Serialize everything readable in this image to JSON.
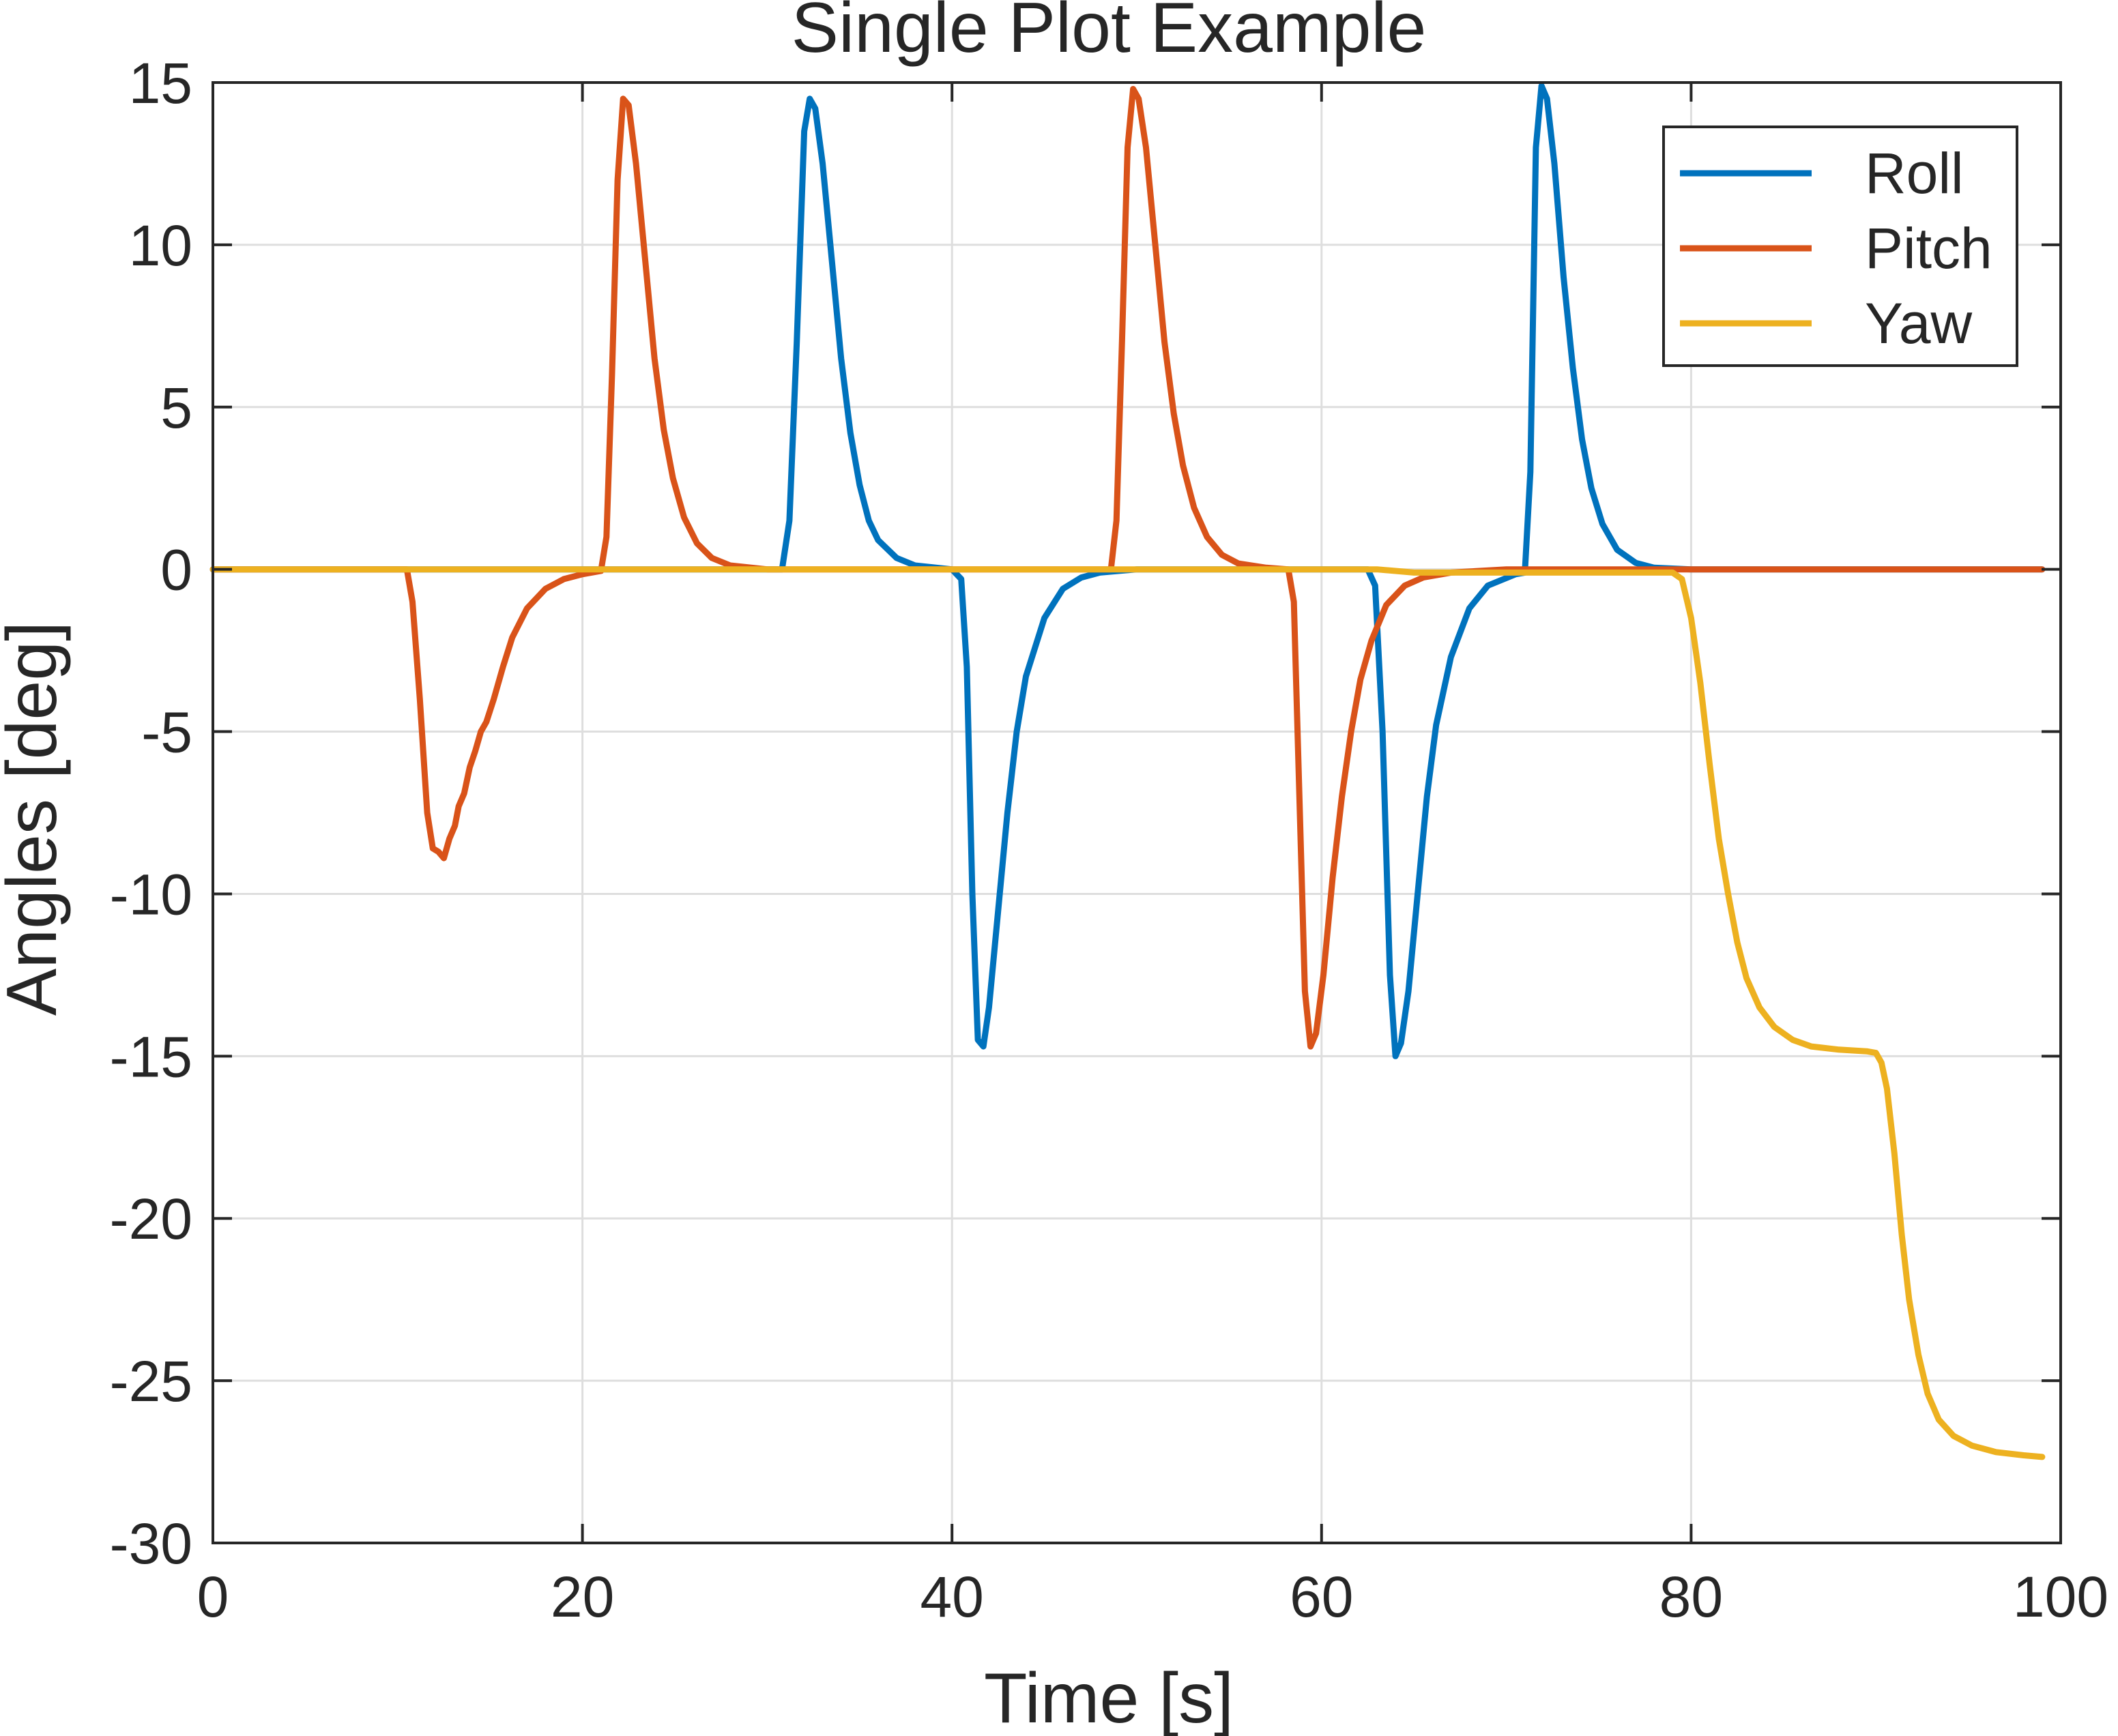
{
  "chart_data": {
    "type": "line",
    "title": "Single Plot Example",
    "xlabel": "Time [s]",
    "ylabel": "Angles [deg]",
    "xlim": [
      0,
      100
    ],
    "ylim": [
      -30,
      15
    ],
    "xticks": [
      0,
      20,
      40,
      60,
      80,
      100
    ],
    "yticks": [
      -30,
      -25,
      -20,
      -15,
      -10,
      -5,
      0,
      5,
      10,
      15
    ],
    "xtick_labels": [
      "0",
      "20",
      "40",
      "60",
      "80",
      "100"
    ],
    "ytick_labels": [
      "-30",
      "-25",
      "-20",
      "-15",
      "-10",
      "-5",
      "0",
      "5",
      "10",
      "15"
    ],
    "grid": true,
    "legend_position": "top-right",
    "series": [
      {
        "name": "Roll",
        "color": "#0072BD",
        "points": [
          [
            0,
            0
          ],
          [
            30.8,
            0
          ],
          [
            31.2,
            1.5
          ],
          [
            31.6,
            7
          ],
          [
            32.0,
            13.5
          ],
          [
            32.3,
            14.5
          ],
          [
            32.6,
            14.2
          ],
          [
            33.0,
            12.5
          ],
          [
            33.5,
            9.5
          ],
          [
            34.0,
            6.5
          ],
          [
            34.5,
            4.2
          ],
          [
            35.0,
            2.6
          ],
          [
            35.5,
            1.5
          ],
          [
            36.0,
            0.9
          ],
          [
            37.0,
            0.35
          ],
          [
            38.0,
            0.12
          ],
          [
            40.0,
            0
          ],
          [
            40.5,
            -0.3
          ],
          [
            40.8,
            -3
          ],
          [
            41.1,
            -10
          ],
          [
            41.4,
            -14.5
          ],
          [
            41.7,
            -14.7
          ],
          [
            42.0,
            -13.5
          ],
          [
            42.5,
            -10.5
          ],
          [
            43.0,
            -7.5
          ],
          [
            43.5,
            -5
          ],
          [
            44.0,
            -3.3
          ],
          [
            45.0,
            -1.5
          ],
          [
            46.0,
            -0.6
          ],
          [
            47.0,
            -0.25
          ],
          [
            48.0,
            -0.1
          ],
          [
            50.0,
            0
          ],
          [
            62.5,
            0
          ],
          [
            62.9,
            -0.5
          ],
          [
            63.3,
            -5
          ],
          [
            63.7,
            -12.5
          ],
          [
            64.0,
            -15
          ],
          [
            64.3,
            -14.6
          ],
          [
            64.7,
            -13
          ],
          [
            65.2,
            -10
          ],
          [
            65.7,
            -7
          ],
          [
            66.2,
            -4.8
          ],
          [
            67.0,
            -2.7
          ],
          [
            68.0,
            -1.2
          ],
          [
            69.0,
            -0.5
          ],
          [
            70.5,
            -0.15
          ],
          [
            71.0,
            -0.1
          ],
          [
            71.3,
            3
          ],
          [
            71.6,
            13
          ],
          [
            71.9,
            14.9
          ],
          [
            72.2,
            14.5
          ],
          [
            72.6,
            12.5
          ],
          [
            73.1,
            9
          ],
          [
            73.6,
            6.2
          ],
          [
            74.1,
            4
          ],
          [
            74.6,
            2.5
          ],
          [
            75.2,
            1.4
          ],
          [
            76.0,
            0.6
          ],
          [
            77.0,
            0.2
          ],
          [
            78.0,
            0.05
          ],
          [
            80.0,
            0
          ],
          [
            99,
            0
          ]
        ]
      },
      {
        "name": "Pitch",
        "color": "#D95319",
        "points": [
          [
            0,
            0
          ],
          [
            10.5,
            0
          ],
          [
            10.8,
            -1
          ],
          [
            11.2,
            -4
          ],
          [
            11.6,
            -7.5
          ],
          [
            11.9,
            -8.6
          ],
          [
            12.2,
            -8.7
          ],
          [
            12.5,
            -8.9
          ],
          [
            12.8,
            -8.3
          ],
          [
            13.1,
            -7.9
          ],
          [
            13.3,
            -7.3
          ],
          [
            13.6,
            -6.9
          ],
          [
            13.9,
            -6.1
          ],
          [
            14.2,
            -5.6
          ],
          [
            14.5,
            -5.0
          ],
          [
            14.8,
            -4.7
          ],
          [
            15.2,
            -4.0
          ],
          [
            15.7,
            -3.0
          ],
          [
            16.2,
            -2.1
          ],
          [
            17.0,
            -1.2
          ],
          [
            18.0,
            -0.6
          ],
          [
            19.0,
            -0.3
          ],
          [
            20.0,
            -0.15
          ],
          [
            21.0,
            -0.05
          ],
          [
            21.3,
            1
          ],
          [
            21.6,
            6
          ],
          [
            21.9,
            12
          ],
          [
            22.2,
            14.5
          ],
          [
            22.5,
            14.3
          ],
          [
            22.9,
            12.5
          ],
          [
            23.4,
            9.5
          ],
          [
            23.9,
            6.5
          ],
          [
            24.4,
            4.3
          ],
          [
            24.9,
            2.8
          ],
          [
            25.5,
            1.6
          ],
          [
            26.2,
            0.8
          ],
          [
            27.0,
            0.35
          ],
          [
            28.0,
            0.12
          ],
          [
            30.0,
            0
          ],
          [
            48.6,
            0
          ],
          [
            48.9,
            1.5
          ],
          [
            49.2,
            7
          ],
          [
            49.5,
            13
          ],
          [
            49.8,
            14.8
          ],
          [
            50.1,
            14.5
          ],
          [
            50.5,
            13
          ],
          [
            51.0,
            10
          ],
          [
            51.5,
            7
          ],
          [
            52.0,
            4.8
          ],
          [
            52.5,
            3.2
          ],
          [
            53.1,
            1.9
          ],
          [
            53.8,
            1
          ],
          [
            54.6,
            0.45
          ],
          [
            55.5,
            0.18
          ],
          [
            57.0,
            0.05
          ],
          [
            58.2,
            0
          ],
          [
            58.5,
            -1
          ],
          [
            58.8,
            -7
          ],
          [
            59.1,
            -13
          ],
          [
            59.4,
            -14.7
          ],
          [
            59.7,
            -14.3
          ],
          [
            60.1,
            -12.5
          ],
          [
            60.6,
            -9.5
          ],
          [
            61.1,
            -7
          ],
          [
            61.6,
            -5
          ],
          [
            62.1,
            -3.4
          ],
          [
            62.7,
            -2.2
          ],
          [
            63.5,
            -1.1
          ],
          [
            64.5,
            -0.5
          ],
          [
            65.5,
            -0.25
          ],
          [
            67.0,
            -0.1
          ],
          [
            70.0,
            0
          ],
          [
            99,
            0
          ]
        ]
      },
      {
        "name": "Yaw",
        "color": "#EDB120",
        "points": [
          [
            0,
            0
          ],
          [
            63.0,
            0
          ],
          [
            64.0,
            -0.05
          ],
          [
            65.0,
            -0.1
          ],
          [
            79.0,
            -0.1
          ],
          [
            79.5,
            -0.3
          ],
          [
            80.0,
            -1.5
          ],
          [
            80.5,
            -3.5
          ],
          [
            81.0,
            -6
          ],
          [
            81.5,
            -8.3
          ],
          [
            82.0,
            -10
          ],
          [
            82.5,
            -11.5
          ],
          [
            83.0,
            -12.6
          ],
          [
            83.7,
            -13.5
          ],
          [
            84.5,
            -14.1
          ],
          [
            85.5,
            -14.5
          ],
          [
            86.5,
            -14.7
          ],
          [
            88.0,
            -14.8
          ],
          [
            89.5,
            -14.85
          ],
          [
            90.0,
            -14.9
          ],
          [
            90.3,
            -15.2
          ],
          [
            90.6,
            -16
          ],
          [
            91.0,
            -18
          ],
          [
            91.4,
            -20.5
          ],
          [
            91.8,
            -22.5
          ],
          [
            92.3,
            -24.2
          ],
          [
            92.8,
            -25.4
          ],
          [
            93.4,
            -26.2
          ],
          [
            94.2,
            -26.7
          ],
          [
            95.2,
            -27.0
          ],
          [
            96.5,
            -27.2
          ],
          [
            98.0,
            -27.3
          ],
          [
            99.0,
            -27.35
          ]
        ]
      }
    ]
  }
}
